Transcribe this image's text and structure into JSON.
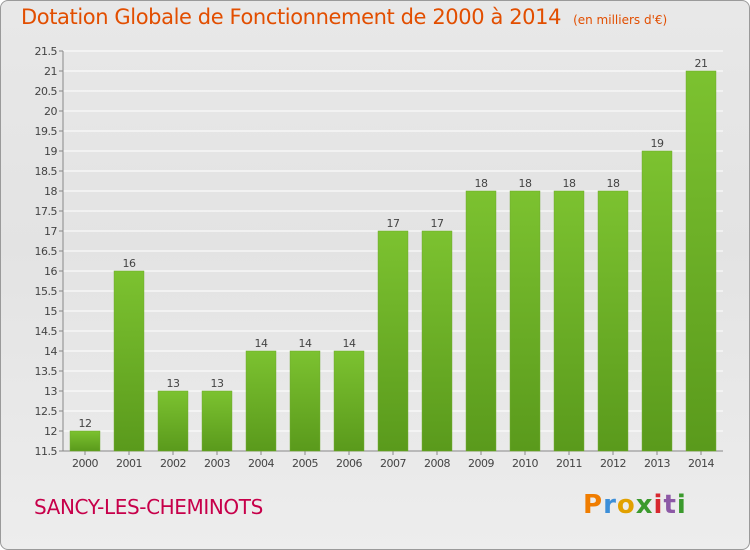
{
  "title": "Dotation Globale de Fonctionnement de 2000 à 2014",
  "unit": "(en milliers d'€)",
  "commune": "SANCY-LES-CHEMINOTS",
  "logo": {
    "letters": [
      "P",
      "r",
      "o",
      "x",
      "i",
      "t",
      "i"
    ],
    "colors": [
      "#f07d00",
      "#3d8fd9",
      "#e2a100",
      "#3b9a2d",
      "#d7282f",
      "#8d59a6",
      "#3b9a2d"
    ]
  },
  "chart_data": {
    "type": "bar",
    "title": "Dotation Globale de Fonctionnement de 2000 à 2014",
    "subtitle": "(en milliers d'€)",
    "categories": [
      "2000",
      "2001",
      "2002",
      "2003",
      "2004",
      "2005",
      "2006",
      "2007",
      "2008",
      "2009",
      "2010",
      "2011",
      "2012",
      "2013",
      "2014"
    ],
    "values": [
      12,
      16,
      13,
      13,
      14,
      14,
      14,
      17,
      17,
      18,
      18,
      18,
      18,
      19,
      21
    ],
    "value_labels": [
      "12",
      "16",
      "13",
      "13",
      "14",
      "14",
      "14",
      "17",
      "17",
      "18",
      "18",
      "18",
      "18",
      "19",
      "21"
    ],
    "ylim": [
      11.5,
      21.5
    ],
    "yticks": [
      11.5,
      12,
      12.5,
      13,
      13.5,
      14,
      14.5,
      15,
      15.5,
      16,
      16.5,
      17,
      17.5,
      18,
      18.5,
      19,
      19.5,
      20,
      20.5,
      21,
      21.5
    ],
    "grid": true,
    "bar_color": "#7cc230",
    "bar_color_dark": "#5a9a1c"
  }
}
